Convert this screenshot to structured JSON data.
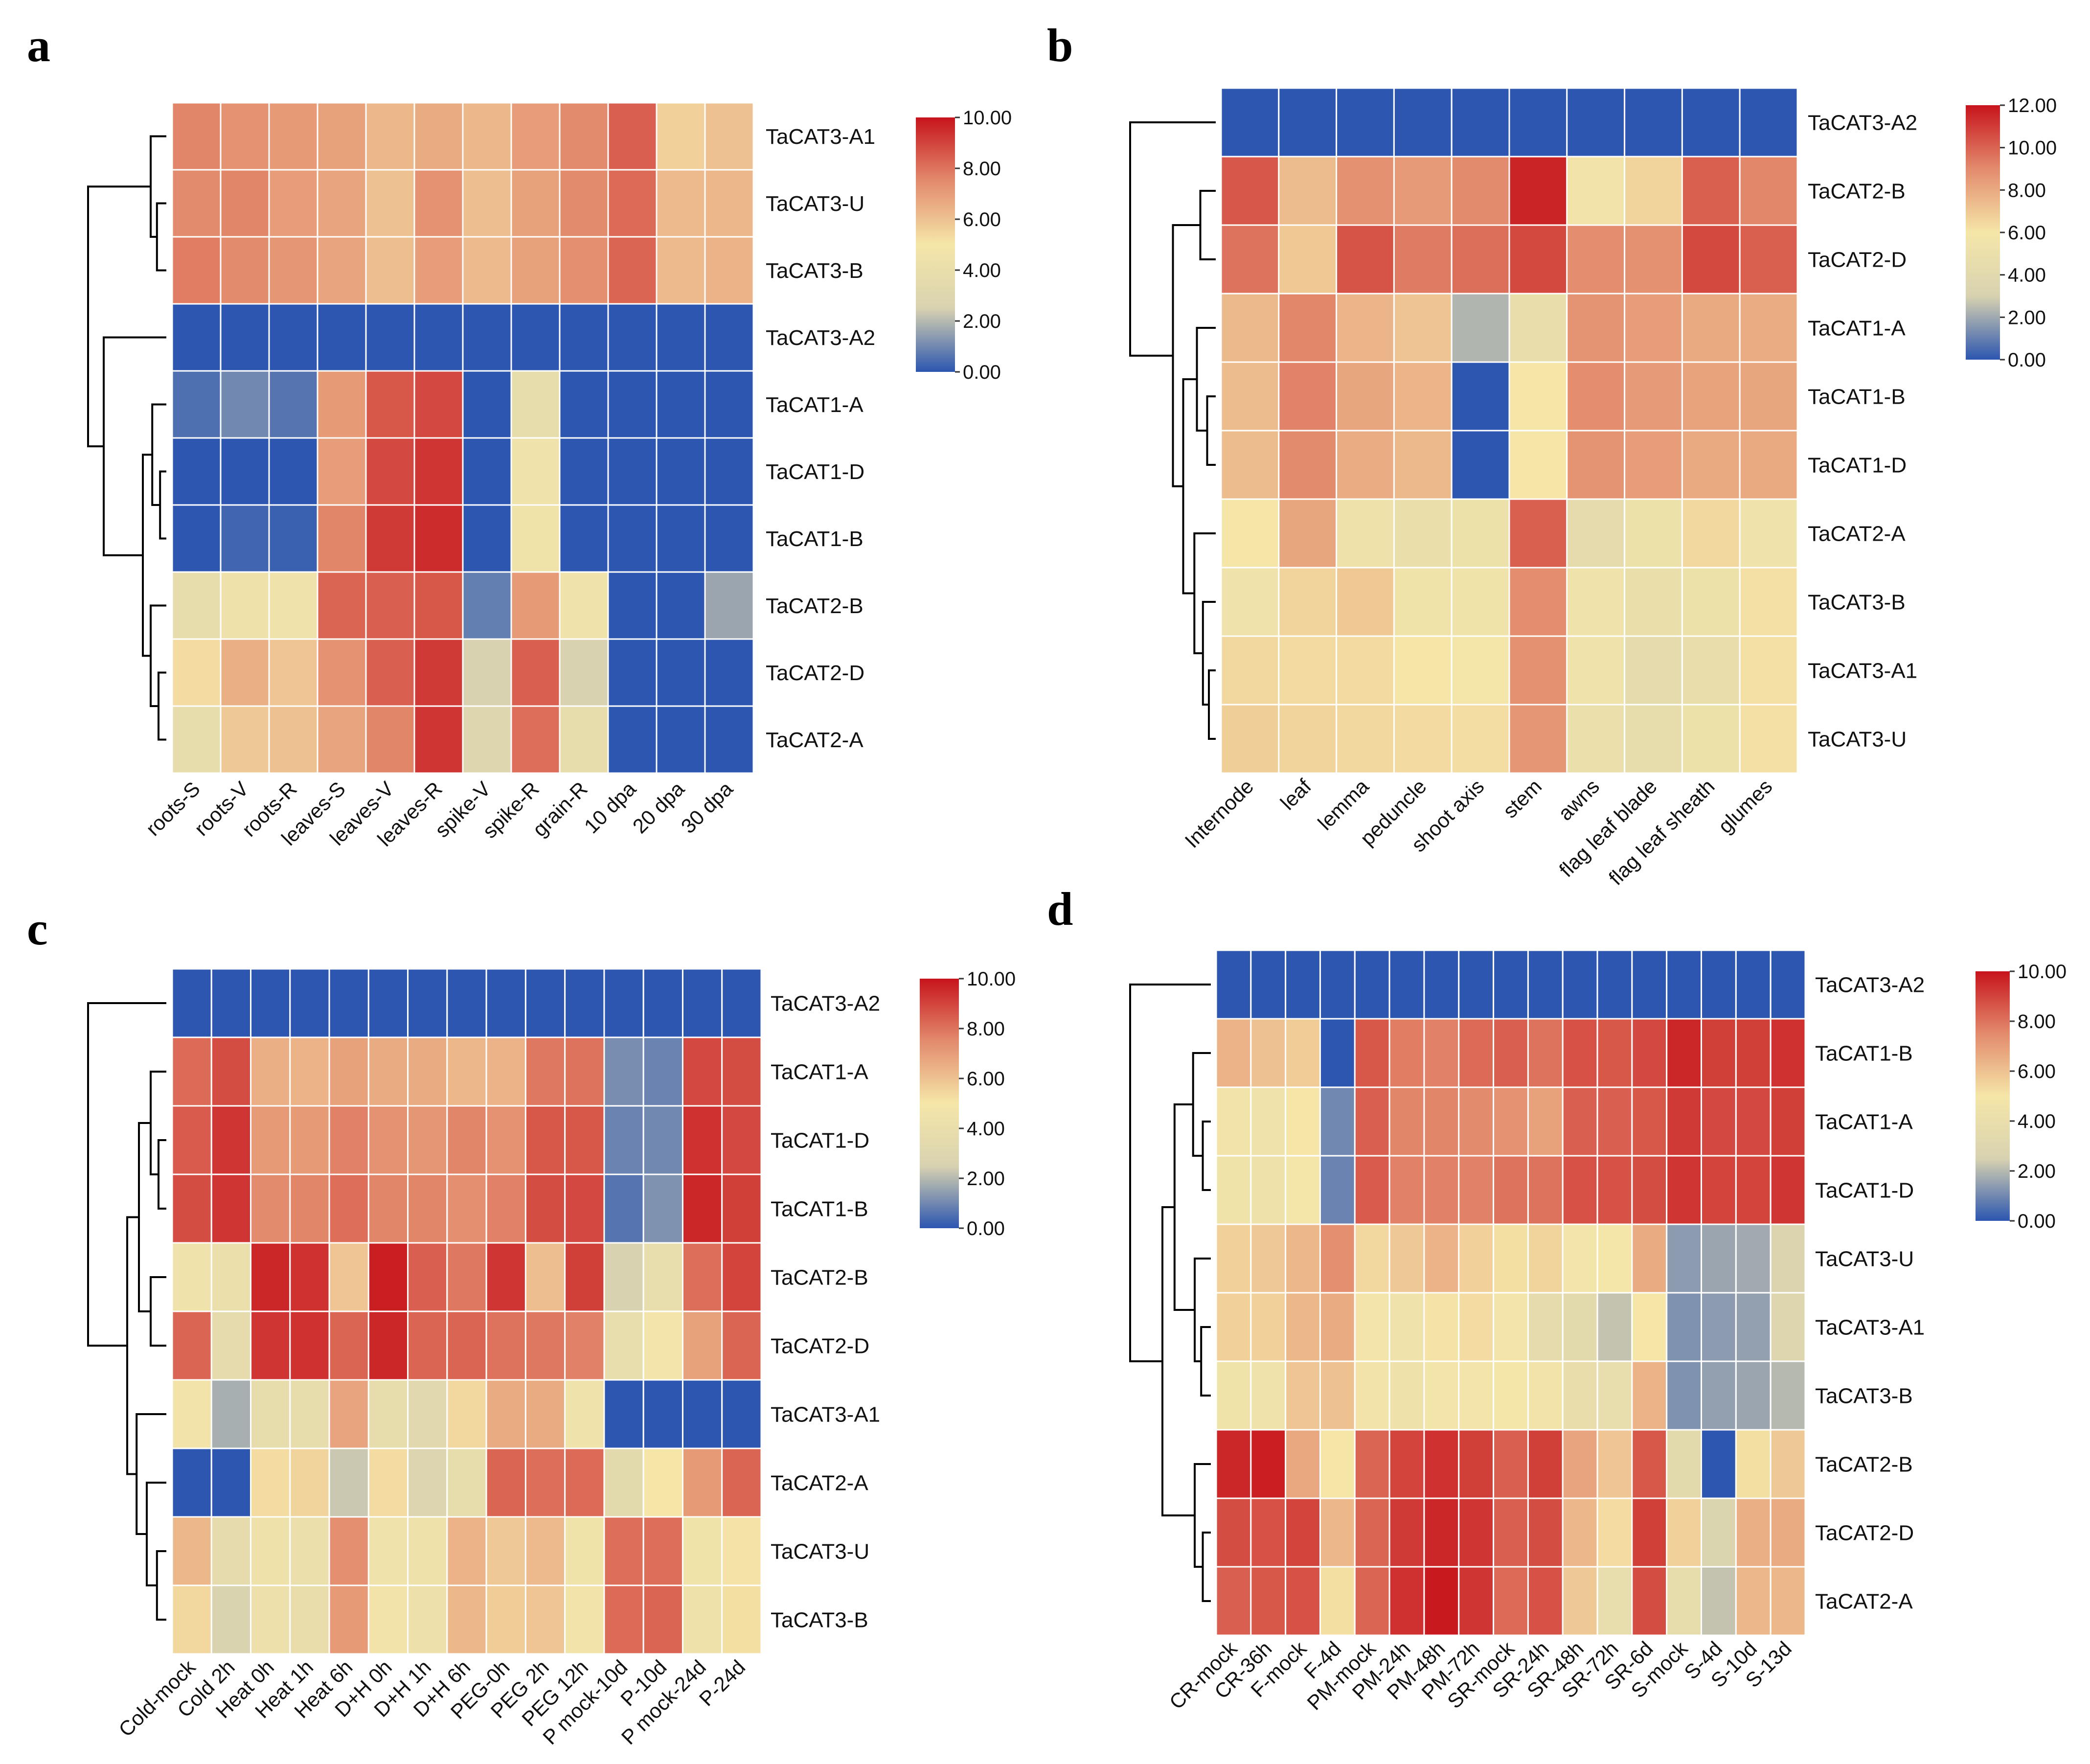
{
  "scale": {
    "colors": [
      "#2c56b0",
      "#d8d2b0",
      "#f5e6a8",
      "#e38b6d",
      "#c7141c"
    ],
    "cell_border": "#ffffff",
    "tree_color": "#000000"
  },
  "chart_data": [
    {
      "panel": "a",
      "type": "heatmap",
      "title": "",
      "xlabel": "",
      "ylabel": "",
      "columns": [
        "roots-S",
        "roots-V",
        "roots-R",
        "leaves-S",
        "leaves-V",
        "leaves-R",
        "spike-V",
        "spike-R",
        "grain-R",
        "10 dpa",
        "20 dpa",
        "30 dpa"
      ],
      "rows": [
        "TaCAT3-A1",
        "TaCAT3-U",
        "TaCAT3-B",
        "TaCAT3-A2",
        "TaCAT1-A",
        "TaCAT1-D",
        "TaCAT1-B",
        "TaCAT2-B",
        "TaCAT2-D",
        "TaCAT2-A"
      ],
      "values": [
        [
          7.6,
          7.3,
          7.1,
          6.9,
          6.3,
          6.6,
          6.3,
          7.0,
          7.5,
          8.4,
          5.6,
          6.0
        ],
        [
          7.5,
          7.6,
          7.0,
          6.8,
          6.0,
          7.3,
          6.1,
          6.9,
          7.5,
          8.2,
          6.2,
          6.3
        ],
        [
          7.8,
          7.5,
          7.2,
          6.8,
          6.1,
          7.0,
          6.2,
          6.9,
          7.4,
          8.3,
          6.2,
          6.4
        ],
        [
          0,
          0,
          0,
          0,
          0,
          0,
          0,
          0,
          0,
          0,
          0,
          0
        ],
        [
          0.5,
          1.0,
          0.6,
          7.1,
          8.6,
          8.9,
          0,
          3.7,
          0,
          0,
          0,
          0
        ],
        [
          0,
          0,
          0,
          7.0,
          8.9,
          9.3,
          0,
          4.5,
          0,
          0,
          0,
          0
        ],
        [
          0,
          0.3,
          0.2,
          7.6,
          9.2,
          9.5,
          0,
          4.6,
          0,
          0,
          0,
          0
        ],
        [
          3.7,
          4.4,
          4.5,
          8.3,
          8.4,
          8.6,
          0.8,
          7.1,
          4.5,
          0,
          0,
          1.6
        ],
        [
          5.3,
          6.5,
          5.9,
          7.3,
          8.4,
          9.2,
          2.5,
          8.4,
          2.5,
          0,
          0,
          0
        ],
        [
          3.8,
          5.8,
          6.0,
          6.8,
          7.6,
          9.3,
          3.0,
          8.1,
          3.7,
          0,
          0,
          0
        ]
      ],
      "colorbar": {
        "min": 0,
        "max": 10,
        "ticks": [
          "10.00",
          "8.00",
          "6.00",
          "4.00",
          "2.00",
          "0.00"
        ]
      },
      "dendrogram_order": [
        "TaCAT3-A1",
        "TaCAT3-U",
        "TaCAT3-B",
        "TaCAT3-A2",
        "TaCAT1-A",
        "TaCAT1-D",
        "TaCAT1-B",
        "TaCAT2-B",
        "TaCAT2-D",
        "TaCAT2-A"
      ]
    },
    {
      "panel": "b",
      "type": "heatmap",
      "title": "",
      "xlabel": "",
      "ylabel": "",
      "columns": [
        "Internode",
        "leaf",
        "lemma",
        "peduncle",
        "shoot axis",
        "stem",
        "awns",
        "flag leaf blade",
        "flag leaf sheath",
        "glumes"
      ],
      "rows": [
        "TaCAT3-A2",
        "TaCAT2-B",
        "TaCAT2-D",
        "TaCAT1-A",
        "TaCAT1-B",
        "TaCAT1-D",
        "TaCAT2-A",
        "TaCAT3-B",
        "TaCAT3-A1",
        "TaCAT3-U"
      ],
      "values": [
        [
          0,
          0,
          0,
          0,
          0,
          0,
          0,
          0,
          0,
          0
        ],
        [
          10.3,
          7.4,
          8.8,
          8.5,
          9.0,
          11.6,
          5.7,
          6.6,
          10.1,
          9.1
        ],
        [
          9.6,
          7.0,
          10.4,
          9.4,
          9.7,
          10.7,
          8.9,
          8.8,
          10.7,
          10.1
        ],
        [
          7.5,
          9.1,
          7.6,
          7.1,
          2.3,
          4.8,
          8.7,
          8.4,
          8.0,
          7.9
        ],
        [
          7.4,
          9.2,
          8.1,
          7.6,
          0,
          6.0,
          8.9,
          8.5,
          8.2,
          8.1
        ],
        [
          7.4,
          9.0,
          7.9,
          7.5,
          0,
          6.0,
          8.7,
          8.4,
          8.0,
          8.0
        ],
        [
          6.0,
          8.1,
          5.3,
          4.9,
          5.2,
          10.1,
          4.3,
          5.2,
          6.5,
          5.4
        ],
        [
          5.4,
          6.6,
          7.0,
          5.5,
          5.5,
          8.9,
          5.4,
          4.9,
          5.2,
          6.2
        ],
        [
          6.5,
          6.4,
          6.4,
          6.0,
          5.9,
          8.8,
          5.4,
          4.3,
          4.8,
          6.2
        ],
        [
          6.8,
          6.6,
          6.5,
          6.4,
          6.3,
          8.6,
          5.0,
          4.5,
          5.2,
          6.2
        ]
      ],
      "colorbar": {
        "min": 0,
        "max": 12,
        "ticks": [
          "12.00",
          "10.00",
          "8.00",
          "6.00",
          "4.00",
          "2.00",
          "0.00"
        ]
      },
      "dendrogram_order": [
        "TaCAT3-A2",
        "TaCAT2-B",
        "TaCAT2-D",
        "TaCAT1-A",
        "TaCAT1-B",
        "TaCAT1-D",
        "TaCAT2-A",
        "TaCAT3-B",
        "TaCAT3-A1",
        "TaCAT3-U"
      ]
    },
    {
      "panel": "c",
      "type": "heatmap",
      "title": "",
      "xlabel": "",
      "ylabel": "",
      "columns": [
        "Cold-mock",
        "Cold 2h",
        "Heat 0h",
        "Heat 1h",
        "Heat 6h",
        "D+H 0h",
        "D+H 1h",
        "D+H 6h",
        "PEG-0h",
        "PEG 2h",
        "PEG 12h",
        "P mock-10d",
        "P-10d",
        "P mock-24d",
        "P-24d"
      ],
      "rows": [
        "TaCAT3-A2",
        "TaCAT1-A",
        "TaCAT1-D",
        "TaCAT1-B",
        "TaCAT2-B",
        "TaCAT2-D",
        "TaCAT3-A1",
        "TaCAT2-A",
        "TaCAT3-U",
        "TaCAT3-B"
      ],
      "values": [
        [
          0,
          0,
          0,
          0,
          0,
          0,
          0,
          0,
          0,
          0,
          0,
          0,
          0,
          0,
          0
        ],
        [
          8.2,
          8.8,
          6.5,
          6.4,
          6.9,
          6.6,
          6.6,
          6.3,
          6.4,
          7.9,
          8.0,
          1.1,
          0.9,
          8.9,
          8.8
        ],
        [
          8.5,
          9.3,
          7.1,
          7.1,
          7.7,
          7.3,
          7.2,
          7.6,
          7.3,
          8.6,
          8.6,
          0.9,
          1.0,
          9.4,
          8.9
        ],
        [
          8.8,
          9.3,
          7.5,
          7.6,
          8.1,
          7.6,
          7.6,
          7.4,
          7.7,
          8.8,
          8.9,
          0.6,
          1.2,
          9.6,
          9.1
        ],
        [
          4.5,
          4.1,
          9.6,
          9.4,
          5.9,
          9.8,
          8.4,
          7.9,
          9.3,
          6.1,
          9.1,
          2.5,
          3.9,
          8.1,
          9.0
        ],
        [
          8.3,
          3.6,
          9.3,
          9.4,
          8.3,
          9.6,
          8.3,
          8.3,
          8.0,
          7.9,
          7.7,
          3.9,
          4.8,
          6.9,
          8.3
        ],
        [
          4.7,
          1.8,
          3.7,
          3.7,
          6.8,
          3.7,
          3.3,
          5.4,
          6.6,
          6.6,
          4.5,
          0,
          0,
          0,
          0
        ],
        [
          0,
          0,
          5.3,
          5.5,
          2.3,
          5.3,
          2.9,
          3.7,
          8.3,
          8.1,
          8.2,
          3.4,
          5.0,
          7.1,
          8.3
        ],
        [
          6.3,
          3.6,
          4.4,
          4.1,
          7.4,
          4.5,
          4.4,
          6.4,
          5.8,
          6.2,
          4.6,
          8.1,
          8.1,
          4.6,
          5.1
        ],
        [
          5.4,
          2.6,
          4.3,
          4.0,
          7.1,
          4.7,
          4.3,
          6.3,
          5.7,
          5.9,
          4.7,
          8.2,
          8.3,
          4.4,
          5.2
        ]
      ],
      "colorbar": {
        "min": 0,
        "max": 10,
        "ticks": [
          "10.00",
          "8.00",
          "6.00",
          "4.00",
          "2.00",
          "0.00"
        ]
      },
      "dendrogram_order": [
        "TaCAT3-A2",
        "TaCAT1-A",
        "TaCAT1-D",
        "TaCAT1-B",
        "TaCAT2-B",
        "TaCAT2-D",
        "TaCAT3-A1",
        "TaCAT2-A",
        "TaCAT3-U",
        "TaCAT3-B"
      ]
    },
    {
      "panel": "d",
      "type": "heatmap",
      "title": "",
      "xlabel": "",
      "ylabel": "",
      "columns": [
        "CR-mock",
        "CR-36h",
        "F-mock",
        "F-4d",
        "PM-mock",
        "PM-24h",
        "PM-48h",
        "PM-72h",
        "SR-mock",
        "SR-24h",
        "SR-48h",
        "SR-72h",
        "SR-6d",
        "S-mock",
        "S-4d",
        "S-10d",
        "S-13d"
      ],
      "rows": [
        "TaCAT3-A2",
        "TaCAT1-B",
        "TaCAT1-A",
        "TaCAT1-D",
        "TaCAT3-U",
        "TaCAT3-A1",
        "TaCAT3-B",
        "TaCAT2-B",
        "TaCAT2-D",
        "TaCAT2-A"
      ],
      "values": [
        [
          0,
          0,
          0,
          0,
          0,
          0,
          0,
          0,
          0,
          0,
          0,
          0,
          0,
          0,
          0,
          0,
          0
        ],
        [
          6.4,
          6.0,
          5.7,
          0,
          8.6,
          7.8,
          7.7,
          8.2,
          8.4,
          8.0,
          8.7,
          8.6,
          8.9,
          9.6,
          9.1,
          9.1,
          9.4
        ],
        [
          4.7,
          4.5,
          5.0,
          1.0,
          8.4,
          7.6,
          7.6,
          7.5,
          7.3,
          6.9,
          8.4,
          8.4,
          8.6,
          9.2,
          8.9,
          8.9,
          9.1
        ],
        [
          4.6,
          4.4,
          4.9,
          0.9,
          8.5,
          7.7,
          7.7,
          7.7,
          8.0,
          8.0,
          8.7,
          8.7,
          8.8,
          9.3,
          9.0,
          9.0,
          9.3
        ],
        [
          5.6,
          5.8,
          6.3,
          7.4,
          5.4,
          5.8,
          6.4,
          5.6,
          5.2,
          5.5,
          4.8,
          4.9,
          6.6,
          1.4,
          1.6,
          1.7,
          2.8
        ],
        [
          5.6,
          5.6,
          6.3,
          6.6,
          4.8,
          4.5,
          5.1,
          5.3,
          4.8,
          3.6,
          3.4,
          2.2,
          5.0,
          1.2,
          1.4,
          1.5,
          3.0
        ],
        [
          4.6,
          4.5,
          5.9,
          6.0,
          4.7,
          4.4,
          4.8,
          4.8,
          4.9,
          4.7,
          4.0,
          3.9,
          6.4,
          1.2,
          1.5,
          1.6,
          2.0
        ],
        [
          9.6,
          9.8,
          6.7,
          5.0,
          8.3,
          9.0,
          9.4,
          9.1,
          8.4,
          9.1,
          6.8,
          5.9,
          8.6,
          3.4,
          0,
          5.2,
          5.8
        ],
        [
          8.8,
          8.7,
          9.0,
          6.3,
          8.3,
          9.2,
          9.6,
          9.3,
          8.4,
          8.8,
          6.3,
          5.3,
          9.1,
          5.6,
          2.7,
          6.5,
          6.6
        ],
        [
          8.4,
          8.6,
          8.7,
          5.2,
          8.3,
          9.4,
          9.9,
          9.3,
          8.2,
          8.7,
          5.8,
          3.9,
          8.8,
          3.8,
          2.2,
          6.3,
          6.3
        ]
      ],
      "colorbar": {
        "min": 0,
        "max": 10,
        "ticks": [
          "10.00",
          "8.00",
          "6.00",
          "4.00",
          "2.00",
          "0.00"
        ]
      },
      "dendrogram_order": [
        "TaCAT3-A2",
        "TaCAT1-B",
        "TaCAT1-A",
        "TaCAT1-D",
        "TaCAT3-U",
        "TaCAT3-A1",
        "TaCAT3-B",
        "TaCAT2-B",
        "TaCAT2-D",
        "TaCAT2-A"
      ]
    }
  ],
  "panel_labels": [
    "a",
    "b",
    "c",
    "d"
  ]
}
